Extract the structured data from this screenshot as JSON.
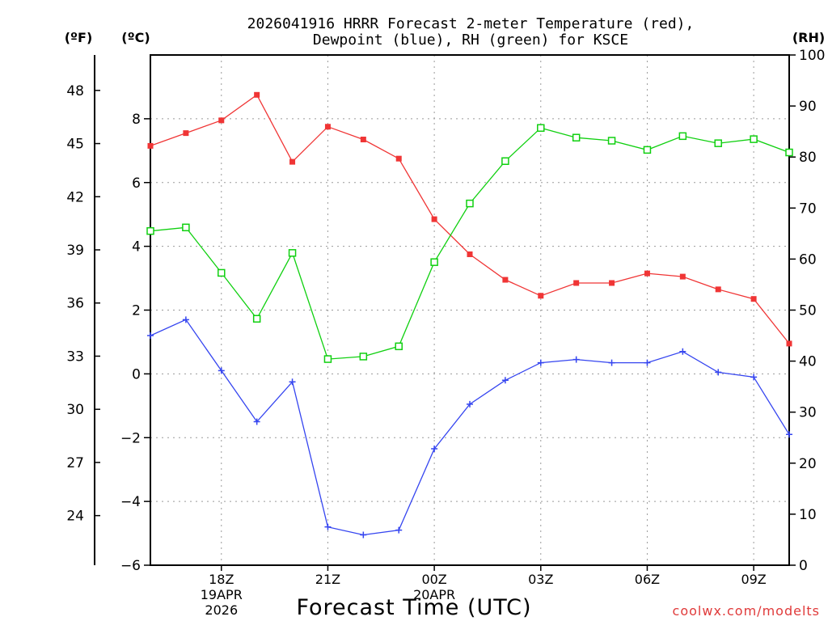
{
  "chart_data": {
    "type": "line",
    "title_line1": "2026041916 HRRR Forecast 2-meter Temperature (red),",
    "title_line2": "Dewpoint (blue), RH (green) for KSCE",
    "unit_f": "(ºF)",
    "unit_c": "(ºC)",
    "unit_rh": "(RH)",
    "xlabel": "Forecast Time (UTC)",
    "watermark": "coolwx.com/modelts",
    "x_start_hour": 16,
    "x_end_hour": 34,
    "celsius_range": [
      -6,
      10
    ],
    "rh_range": [
      0,
      100
    ],
    "fahrenheit_ticks": [
      "24",
      "27",
      "30",
      "33",
      "36",
      "39",
      "42",
      "45",
      "48"
    ],
    "celsius_ticks": [
      "-6",
      "-4",
      "-2",
      "0",
      "2",
      "4",
      "6",
      "8"
    ],
    "rh_ticks": [
      "0",
      "10",
      "20",
      "30",
      "40",
      "50",
      "60",
      "70",
      "80",
      "90",
      "100"
    ],
    "x_ticks": [
      {
        "hour": 18,
        "label": "18Z",
        "sub1": "19APR",
        "sub2": "2026"
      },
      {
        "hour": 21,
        "label": "21Z",
        "sub1": "",
        "sub2": ""
      },
      {
        "hour": 24,
        "label": "00Z",
        "sub1": "20APR",
        "sub2": ""
      },
      {
        "hour": 27,
        "label": "03Z",
        "sub1": "",
        "sub2": ""
      },
      {
        "hour": 30,
        "label": "06Z",
        "sub1": "",
        "sub2": ""
      },
      {
        "hour": 33,
        "label": "09Z",
        "sub1": "",
        "sub2": ""
      }
    ],
    "series": [
      {
        "name": "2-meter Temperature",
        "unit": "C",
        "color": "#f03535",
        "marker": "filled-square",
        "x": [
          16,
          17,
          18,
          19,
          20,
          21,
          22,
          23,
          24,
          25,
          26,
          27,
          28,
          29,
          30,
          31,
          32,
          33,
          34
        ],
        "values": [
          7.15,
          7.55,
          7.95,
          8.75,
          6.65,
          7.75,
          7.35,
          6.75,
          4.85,
          3.75,
          2.95,
          2.45,
          2.85,
          2.85,
          3.15,
          3.05,
          2.65,
          2.35,
          0.95
        ]
      },
      {
        "name": "Dewpoint",
        "unit": "C",
        "color": "#3545f0",
        "marker": "plus",
        "x": [
          16,
          17,
          18,
          19,
          20,
          21,
          22,
          23,
          24,
          25,
          26,
          27,
          28,
          29,
          30,
          31,
          32,
          33,
          34
        ],
        "values": [
          1.2,
          1.7,
          0.1,
          -1.5,
          -0.25,
          -4.8,
          -5.05,
          -4.9,
          -2.35,
          -0.95,
          -0.2,
          0.35,
          0.45,
          0.35,
          0.35,
          0.7,
          0.05,
          -0.1,
          -1.9
        ]
      },
      {
        "name": "RH",
        "unit": "%",
        "color": "#10d010",
        "marker": "open-square",
        "x": [
          16,
          17,
          18,
          19,
          20,
          21,
          22,
          23,
          24,
          25,
          26,
          27,
          28,
          29,
          30,
          31,
          32,
          33,
          34
        ],
        "values": [
          65.5,
          66.2,
          57.3,
          48.3,
          61.2,
          40.4,
          40.9,
          42.9,
          59.4,
          70.9,
          79.2,
          85.7,
          83.8,
          83.2,
          81.4,
          84.1,
          82.7,
          83.5,
          80.9
        ]
      }
    ]
  }
}
